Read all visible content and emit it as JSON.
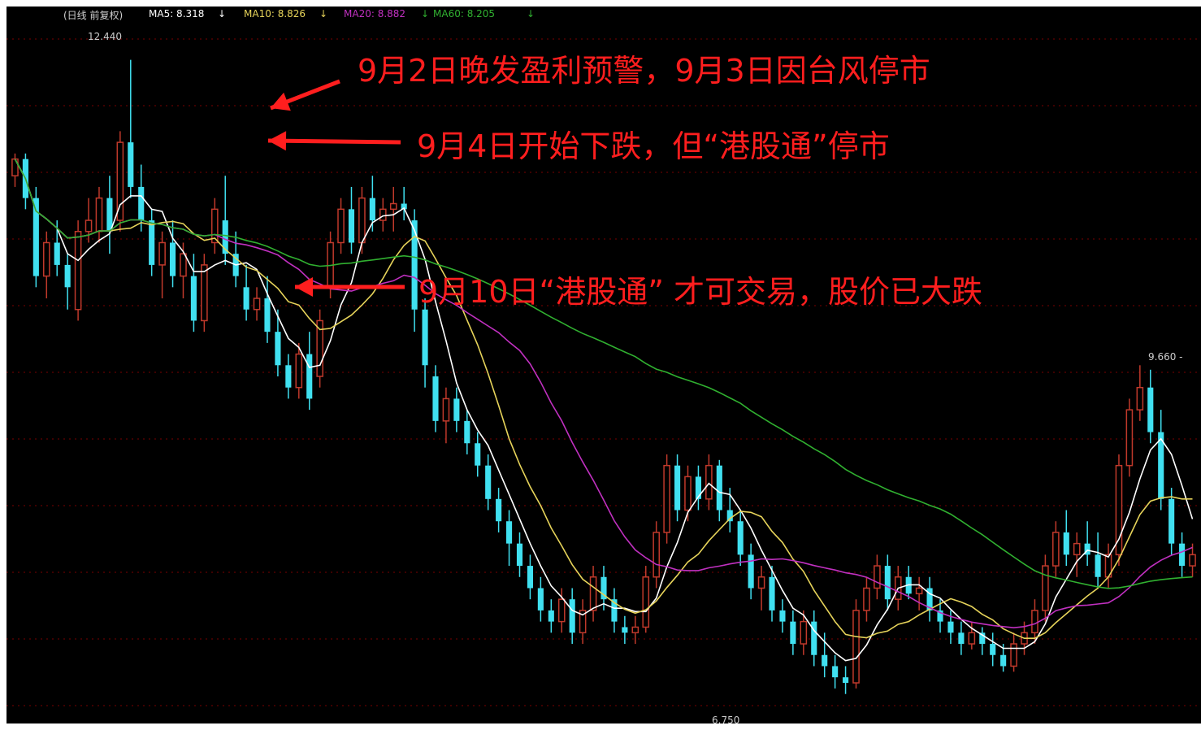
{
  "header": {
    "title": "(日线 前复权)",
    "ma5": "MA5: 8.318",
    "ma10": "MA10: 8.826",
    "ma20": "MA20: 8.882",
    "ma60": "MA60: 8.205",
    "arrow": "↓"
  },
  "annotations": {
    "a1": "9月2日晚发盈利预警，9月3日因台风停市",
    "a2": "9月4日开始下跌，但“港股通”停市",
    "a3": "9月10日“港股通” 才可交易，股价已大跌"
  },
  "price_labels": {
    "high": "12.440",
    "low": "6.750",
    "right": "9.660 -"
  },
  "colors": {
    "background": "#000000",
    "up": "#c0392b",
    "down": "#40e0f0",
    "ma5": "#ffffff",
    "ma10": "#e6d35a",
    "ma20": "#c030c0",
    "ma60": "#30b030",
    "annotation": "#ff1e1e",
    "grid": "#7a0000"
  },
  "chart_data": {
    "type": "candlestick",
    "title": "(日线 前复权)",
    "ylim": [
      6.5,
      12.7
    ],
    "high_label": 12.44,
    "low_label": 6.75,
    "candles": [
      [
        11.4,
        11.6,
        11.3,
        11.55
      ],
      [
        11.55,
        11.6,
        11.1,
        11.2
      ],
      [
        11.2,
        11.3,
        10.4,
        10.5
      ],
      [
        10.5,
        10.9,
        10.3,
        10.8
      ],
      [
        10.8,
        11.0,
        10.5,
        10.6
      ],
      [
        10.6,
        10.7,
        10.2,
        10.4
      ],
      [
        10.2,
        11.0,
        10.1,
        10.9
      ],
      [
        10.9,
        11.2,
        10.8,
        11.0
      ],
      [
        10.9,
        11.3,
        10.8,
        11.2
      ],
      [
        11.2,
        11.4,
        10.7,
        10.9
      ],
      [
        11.0,
        11.8,
        10.9,
        11.7
      ],
      [
        11.7,
        12.44,
        11.2,
        11.3
      ],
      [
        11.3,
        11.5,
        10.9,
        11.0
      ],
      [
        11.0,
        11.1,
        10.5,
        10.6
      ],
      [
        10.6,
        10.9,
        10.3,
        10.8
      ],
      [
        10.8,
        11.0,
        10.4,
        10.5
      ],
      [
        10.5,
        10.8,
        10.3,
        10.7
      ],
      [
        10.5,
        10.7,
        10.0,
        10.1
      ],
      [
        10.1,
        10.7,
        10.0,
        10.6
      ],
      [
        10.8,
        11.2,
        10.7,
        11.1
      ],
      [
        11.0,
        11.4,
        10.6,
        10.7
      ],
      [
        10.7,
        10.9,
        10.4,
        10.5
      ],
      [
        10.4,
        10.6,
        10.1,
        10.2
      ],
      [
        10.2,
        10.4,
        10.1,
        10.3
      ],
      [
        10.3,
        10.5,
        9.9,
        10.0
      ],
      [
        10.0,
        10.2,
        9.6,
        9.7
      ],
      [
        9.7,
        9.8,
        9.4,
        9.5
      ],
      [
        9.5,
        9.9,
        9.4,
        9.8
      ],
      [
        9.8,
        10.0,
        9.3,
        9.4
      ],
      [
        9.6,
        10.2,
        9.5,
        10.1
      ],
      [
        10.4,
        10.9,
        10.3,
        10.8
      ],
      [
        10.8,
        11.2,
        10.7,
        11.1
      ],
      [
        11.1,
        11.3,
        10.7,
        10.8
      ],
      [
        10.8,
        11.3,
        10.7,
        11.2
      ],
      [
        11.2,
        11.4,
        10.9,
        11.0
      ],
      [
        11.0,
        11.2,
        10.9,
        11.1
      ],
      [
        11.1,
        11.3,
        10.9,
        11.15
      ],
      [
        11.15,
        11.3,
        11.0,
        11.1
      ],
      [
        11.0,
        11.1,
        10.0,
        10.2
      ],
      [
        10.2,
        10.3,
        9.5,
        9.7
      ],
      [
        9.6,
        9.7,
        9.1,
        9.2
      ],
      [
        9.2,
        9.5,
        9.0,
        9.4
      ],
      [
        9.4,
        9.5,
        9.1,
        9.2
      ],
      [
        9.2,
        9.3,
        8.9,
        9.0
      ],
      [
        9.0,
        9.1,
        8.7,
        8.8
      ],
      [
        8.8,
        8.9,
        8.4,
        8.5
      ],
      [
        8.5,
        8.6,
        8.2,
        8.3
      ],
      [
        8.3,
        8.4,
        7.9,
        8.1
      ],
      [
        8.1,
        8.2,
        7.8,
        7.9
      ],
      [
        7.9,
        8.0,
        7.6,
        7.7
      ],
      [
        7.7,
        7.8,
        7.4,
        7.5
      ],
      [
        7.5,
        7.6,
        7.3,
        7.4
      ],
      [
        7.4,
        7.7,
        7.3,
        7.6
      ],
      [
        7.6,
        7.7,
        7.2,
        7.3
      ],
      [
        7.3,
        7.6,
        7.2,
        7.5
      ],
      [
        7.5,
        7.9,
        7.4,
        7.8
      ],
      [
        7.8,
        7.9,
        7.5,
        7.6
      ],
      [
        7.6,
        7.7,
        7.3,
        7.4
      ],
      [
        7.35,
        7.45,
        7.2,
        7.3
      ],
      [
        7.3,
        7.45,
        7.2,
        7.35
      ],
      [
        7.35,
        7.9,
        7.3,
        7.8
      ],
      [
        7.8,
        8.3,
        7.7,
        8.2
      ],
      [
        8.2,
        8.9,
        8.1,
        8.8
      ],
      [
        8.8,
        8.9,
        8.3,
        8.4
      ],
      [
        8.4,
        8.8,
        8.3,
        8.7
      ],
      [
        8.7,
        8.8,
        8.4,
        8.5
      ],
      [
        8.5,
        8.9,
        8.4,
        8.8
      ],
      [
        8.8,
        8.85,
        8.3,
        8.4
      ],
      [
        8.4,
        8.6,
        8.2,
        8.3
      ],
      [
        8.3,
        8.4,
        7.9,
        8.0
      ],
      [
        8.0,
        8.1,
        7.6,
        7.7
      ],
      [
        7.7,
        7.9,
        7.5,
        7.8
      ],
      [
        7.8,
        7.9,
        7.4,
        7.5
      ],
      [
        7.5,
        7.6,
        7.3,
        7.4
      ],
      [
        7.4,
        7.5,
        7.1,
        7.2
      ],
      [
        7.2,
        7.5,
        7.1,
        7.4
      ],
      [
        7.4,
        7.5,
        7.0,
        7.1
      ],
      [
        7.1,
        7.3,
        6.9,
        7.0
      ],
      [
        7.0,
        7.1,
        6.8,
        6.9
      ],
      [
        6.9,
        7.0,
        6.75,
        6.85
      ],
      [
        6.85,
        7.6,
        6.8,
        7.5
      ],
      [
        7.5,
        7.8,
        7.4,
        7.7
      ],
      [
        7.7,
        8.0,
        7.6,
        7.9
      ],
      [
        7.9,
        8.0,
        7.5,
        7.6
      ],
      [
        7.6,
        7.9,
        7.5,
        7.8
      ],
      [
        7.8,
        7.9,
        7.6,
        7.65
      ],
      [
        7.65,
        7.8,
        7.5,
        7.7
      ],
      [
        7.7,
        7.8,
        7.4,
        7.5
      ],
      [
        7.5,
        7.6,
        7.3,
        7.4
      ],
      [
        7.4,
        7.5,
        7.2,
        7.3
      ],
      [
        7.3,
        7.4,
        7.1,
        7.2
      ],
      [
        7.2,
        7.4,
        7.15,
        7.3
      ],
      [
        7.3,
        7.35,
        7.1,
        7.2
      ],
      [
        7.2,
        7.3,
        7.0,
        7.1
      ],
      [
        7.1,
        7.2,
        6.95,
        7.0
      ],
      [
        7.0,
        7.3,
        6.95,
        7.2
      ],
      [
        7.2,
        7.4,
        7.1,
        7.3
      ],
      [
        7.3,
        7.6,
        7.2,
        7.5
      ],
      [
        7.5,
        8.0,
        7.4,
        7.9
      ],
      [
        7.9,
        8.3,
        7.8,
        8.2
      ],
      [
        8.2,
        8.4,
        7.9,
        8.0
      ],
      [
        8.0,
        8.2,
        7.8,
        8.1
      ],
      [
        8.1,
        8.3,
        7.9,
        8.0
      ],
      [
        8.0,
        8.2,
        7.7,
        7.8
      ],
      [
        7.8,
        8.1,
        7.7,
        8.0
      ],
      [
        8.0,
        8.9,
        7.9,
        8.8
      ],
      [
        8.8,
        9.4,
        8.7,
        9.3
      ],
      [
        9.3,
        9.7,
        9.2,
        9.5
      ],
      [
        9.5,
        9.66,
        9.0,
        9.1
      ],
      [
        9.1,
        9.3,
        8.4,
        8.5
      ],
      [
        8.5,
        8.6,
        8.0,
        8.1
      ],
      [
        8.1,
        8.2,
        7.8,
        7.9
      ],
      [
        7.9,
        8.1,
        7.8,
        8.0
      ]
    ]
  }
}
